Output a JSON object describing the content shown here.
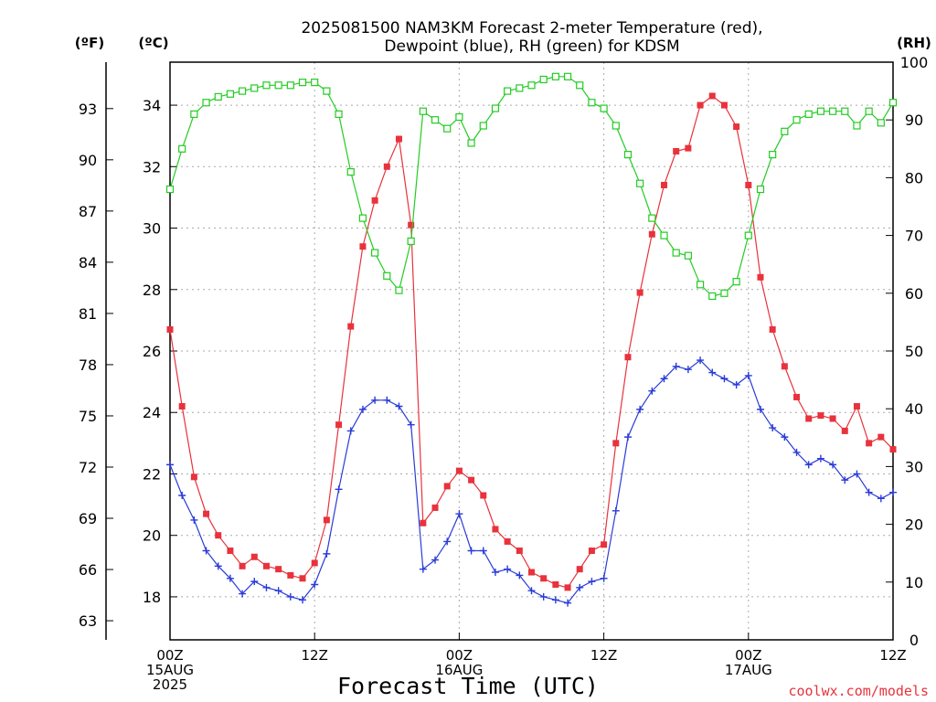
{
  "chart_data": {
    "type": "line",
    "title_line1": "2025081500 NAM3KM Forecast 2-meter Temperature (red),",
    "title_line2": "Dewpoint (blue), RH (green) for KDSM",
    "units": {
      "f": "(ºF)",
      "c": "(ºC)",
      "rh": "(RH)"
    },
    "xlabel": "Forecast Time (UTC)",
    "credit": "coolwx.com/models",
    "colors": {
      "temperature": "#e8323c",
      "dewpoint": "#2a3bd8",
      "rh": "#22cc22",
      "grid": "#aaaaaa"
    },
    "x_range_hours": [
      0,
      60
    ],
    "x_ticks": [
      {
        "hour": 0,
        "lines": [
          "00Z",
          "15AUG",
          "2025"
        ]
      },
      {
        "hour": 12,
        "lines": [
          "12Z"
        ]
      },
      {
        "hour": 24,
        "lines": [
          "00Z",
          "16AUG"
        ]
      },
      {
        "hour": 36,
        "lines": [
          "12Z"
        ]
      },
      {
        "hour": 48,
        "lines": [
          "00Z",
          "17AUG"
        ]
      },
      {
        "hour": 60,
        "lines": [
          "12Z"
        ]
      }
    ],
    "y_left_celsius": {
      "range": [
        16.6,
        35.4
      ],
      "ticks": [
        "18",
        "20",
        "22",
        "24",
        "26",
        "28",
        "30",
        "32",
        "34"
      ]
    },
    "y_left_fahrenheit": {
      "ticks": [
        "63",
        "66",
        "69",
        "72",
        "75",
        "78",
        "81",
        "84",
        "87",
        "90",
        "93"
      ]
    },
    "y_right_rh": {
      "range": [
        0,
        100
      ],
      "ticks": [
        "0",
        "10",
        "20",
        "30",
        "40",
        "50",
        "60",
        "70",
        "80",
        "90",
        "100"
      ]
    },
    "hours": [
      0,
      1,
      2,
      3,
      4,
      5,
      6,
      7,
      8,
      9,
      10,
      11,
      12,
      13,
      14,
      15,
      16,
      17,
      18,
      19,
      20,
      21,
      22,
      23,
      24,
      25,
      26,
      27,
      28,
      29,
      30,
      31,
      32,
      33,
      34,
      35,
      36,
      37,
      38,
      39,
      40,
      41,
      42,
      43,
      44,
      45,
      46,
      47,
      48,
      49,
      50,
      51,
      52,
      53,
      54,
      55,
      56,
      57,
      58,
      59,
      60
    ],
    "series": [
      {
        "name": "Temperature (red)",
        "key": "temperature",
        "unit": "°C",
        "values": [
          26.7,
          24.2,
          21.9,
          20.7,
          20.0,
          19.5,
          19.0,
          19.3,
          19.0,
          18.9,
          18.7,
          18.6,
          19.1,
          20.5,
          23.6,
          26.8,
          29.4,
          30.9,
          32.0,
          32.9,
          30.1,
          20.4,
          20.9,
          21.6,
          22.1,
          21.8,
          21.3,
          20.2,
          19.8,
          19.5,
          18.8,
          18.6,
          18.4,
          18.3,
          18.9,
          19.5,
          19.7,
          23.0,
          25.8,
          27.9,
          29.8,
          31.4,
          32.5,
          32.6,
          34.0,
          34.3,
          34.0,
          33.3,
          31.4,
          28.4,
          26.7,
          25.5,
          24.5,
          23.8,
          23.9,
          23.8,
          23.4,
          24.2,
          23.0,
          23.2,
          22.8
        ]
      },
      {
        "name": "Dewpoint (blue)",
        "key": "dewpoint",
        "unit": "°C",
        "values": [
          22.3,
          21.3,
          20.5,
          19.5,
          19.0,
          18.6,
          18.1,
          18.5,
          18.3,
          18.2,
          18.0,
          17.9,
          18.4,
          19.4,
          21.5,
          23.4,
          24.1,
          24.4,
          24.4,
          24.2,
          23.6,
          18.9,
          19.2,
          19.8,
          20.7,
          19.5,
          19.5,
          18.8,
          18.9,
          18.7,
          18.2,
          18.0,
          17.9,
          17.8,
          18.3,
          18.5,
          18.6,
          20.8,
          23.2,
          24.1,
          24.7,
          25.1,
          25.5,
          25.4,
          25.7,
          25.3,
          25.1,
          24.9,
          25.2,
          24.1,
          23.5,
          23.2,
          22.7,
          22.3,
          22.5,
          22.3,
          21.8,
          22.0,
          21.4,
          21.2,
          21.4
        ]
      },
      {
        "name": "RH (green)",
        "key": "rh",
        "unit": "%",
        "values": [
          78,
          85,
          91,
          93,
          94,
          94.5,
          95,
          95.5,
          96,
          96,
          96,
          96.5,
          96.5,
          95,
          91,
          81,
          73,
          67,
          63,
          60.5,
          69,
          91.5,
          90,
          88.5,
          90.5,
          86,
          89,
          92,
          95,
          95.5,
          96,
          97,
          97.5,
          97.5,
          96,
          93,
          92,
          89,
          84,
          79,
          73,
          70,
          67,
          66.5,
          61.5,
          59.5,
          60,
          62,
          70,
          78,
          84,
          88,
          90,
          91,
          91.5,
          91.5,
          91.5,
          89,
          91.5,
          89.5,
          93
        ]
      }
    ]
  }
}
